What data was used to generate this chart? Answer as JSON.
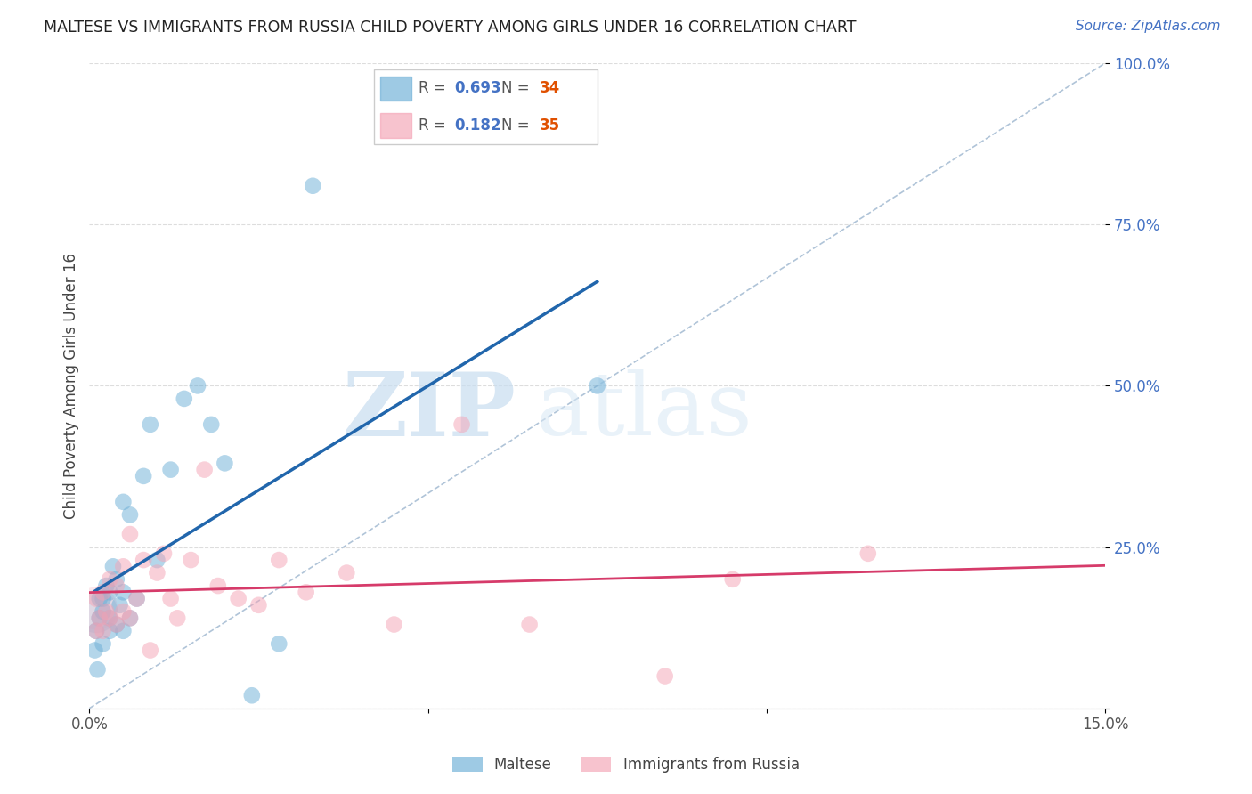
{
  "title": "MALTESE VS IMMIGRANTS FROM RUSSIA CHILD POVERTY AMONG GIRLS UNDER 16 CORRELATION CHART",
  "source": "Source: ZipAtlas.com",
  "ylabel": "Child Poverty Among Girls Under 16",
  "R1": 0.693,
  "N1": 34,
  "R2": 0.182,
  "N2": 35,
  "color1": "#6baed6",
  "color2": "#f4a3b5",
  "trendline1_color": "#2166ac",
  "trendline2_color": "#d63b6a",
  "diagonal_color": "#b0c4d8",
  "xlim": [
    0.0,
    0.15
  ],
  "ylim": [
    0.0,
    1.0
  ],
  "yticks": [
    0.0,
    0.25,
    0.5,
    0.75,
    1.0
  ],
  "ytick_labels": [
    "",
    "25.0%",
    "50.0%",
    "75.0%",
    "100.0%"
  ],
  "xticks": [
    0.0,
    0.05,
    0.1,
    0.15
  ],
  "xtick_labels": [
    "0.0%",
    "",
    "",
    "15.0%"
  ],
  "legend_label1": "Maltese",
  "legend_label2": "Immigrants from Russia",
  "blue_scatter_x": [
    0.0008,
    0.001,
    0.0012,
    0.0015,
    0.0015,
    0.002,
    0.002,
    0.002,
    0.0025,
    0.003,
    0.003,
    0.003,
    0.0035,
    0.004,
    0.004,
    0.0045,
    0.005,
    0.005,
    0.005,
    0.006,
    0.006,
    0.007,
    0.008,
    0.009,
    0.01,
    0.012,
    0.014,
    0.016,
    0.018,
    0.02,
    0.024,
    0.028,
    0.033,
    0.075
  ],
  "blue_scatter_y": [
    0.09,
    0.12,
    0.06,
    0.14,
    0.17,
    0.1,
    0.15,
    0.17,
    0.19,
    0.12,
    0.14,
    0.18,
    0.22,
    0.13,
    0.2,
    0.16,
    0.12,
    0.18,
    0.32,
    0.14,
    0.3,
    0.17,
    0.36,
    0.44,
    0.23,
    0.37,
    0.48,
    0.5,
    0.44,
    0.38,
    0.02,
    0.1,
    0.81,
    0.5
  ],
  "pink_scatter_x": [
    0.001,
    0.001,
    0.0015,
    0.002,
    0.002,
    0.0025,
    0.003,
    0.003,
    0.004,
    0.004,
    0.005,
    0.005,
    0.006,
    0.006,
    0.007,
    0.008,
    0.009,
    0.01,
    0.011,
    0.012,
    0.013,
    0.015,
    0.017,
    0.019,
    0.022,
    0.025,
    0.028,
    0.032,
    0.038,
    0.045,
    0.055,
    0.065,
    0.085,
    0.095,
    0.115
  ],
  "pink_scatter_y": [
    0.12,
    0.17,
    0.14,
    0.12,
    0.18,
    0.15,
    0.14,
    0.2,
    0.13,
    0.19,
    0.15,
    0.22,
    0.14,
    0.27,
    0.17,
    0.23,
    0.09,
    0.21,
    0.24,
    0.17,
    0.14,
    0.23,
    0.37,
    0.19,
    0.17,
    0.16,
    0.23,
    0.18,
    0.21,
    0.13,
    0.44,
    0.13,
    0.05,
    0.2,
    0.24
  ],
  "watermark_zip": "ZIP",
  "watermark_atlas": "atlas",
  "background_color": "#ffffff",
  "grid_color": "#dddddd",
  "title_fontsize": 12.5,
  "axis_label_fontsize": 12,
  "tick_fontsize": 12,
  "legend_fontsize": 12,
  "source_fontsize": 11
}
